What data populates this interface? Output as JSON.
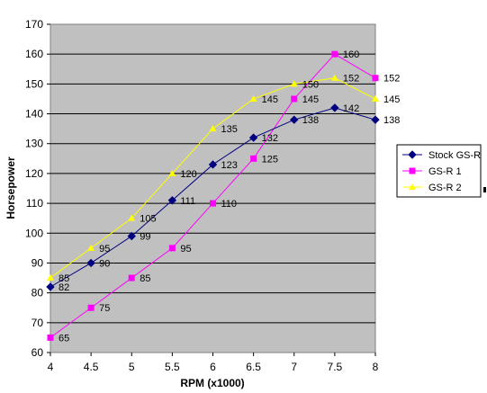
{
  "chart_data": {
    "type": "line",
    "xlabel": "RPM (x1000)",
    "ylabel": "Horsepower",
    "x": [
      4,
      4.5,
      5,
      5.5,
      6,
      6.5,
      7,
      7.5,
      8
    ],
    "x_tick_labels": [
      "4",
      "4.5",
      "5",
      "5.5",
      "6",
      "6.5",
      "7",
      "7.5",
      "8"
    ],
    "xlim": [
      4,
      8
    ],
    "ylim": [
      60,
      170
    ],
    "y_ticks": [
      60,
      70,
      80,
      90,
      100,
      110,
      120,
      130,
      140,
      150,
      160,
      170
    ],
    "grid": "horizontal",
    "plot_background": "#c0c0c0",
    "legend_position": "right",
    "series": [
      {
        "name": "Stock GS-R",
        "color": "#000080",
        "marker": "diamond",
        "values": [
          82,
          90,
          99,
          111,
          123,
          132,
          138,
          142,
          138
        ]
      },
      {
        "name": "GS-R 1",
        "color": "#ff00ff",
        "marker": "square",
        "values": [
          65,
          75,
          85,
          95,
          110,
          125,
          145,
          160,
          152
        ]
      },
      {
        "name": "GS-R 2",
        "color": "#ffff00",
        "marker": "triangle",
        "values": [
          85,
          95,
          105,
          120,
          135,
          145,
          150,
          152,
          145
        ]
      }
    ]
  }
}
